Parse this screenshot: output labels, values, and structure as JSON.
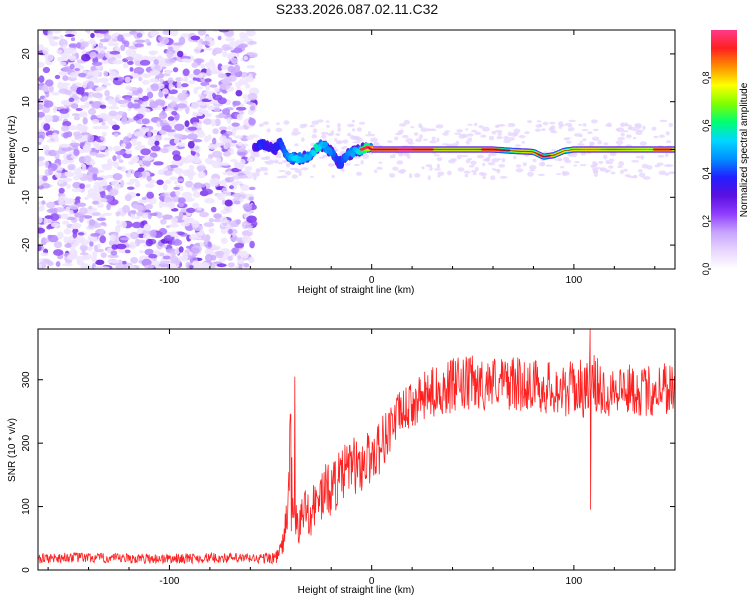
{
  "title": "S233.2026.087.02.11.C32",
  "chart_data": [
    {
      "type": "heatmap",
      "title": "",
      "xlabel": "Height of straight line (km)",
      "ylabel": "Frequency (Hz)",
      "xlim": [
        -165,
        150
      ],
      "ylim": [
        -25,
        25
      ],
      "x_ticks": [
        -100,
        0,
        100
      ],
      "y_ticks": [
        -20,
        -10,
        0,
        10,
        20
      ],
      "colorbar": {
        "label": "Normalized spectral amplitude",
        "range": [
          0,
          1
        ],
        "ticks": [
          "0.0",
          "0.2",
          "0.4",
          "0.6",
          "0.8"
        ],
        "colormap": [
          "#ffffff",
          "#e8d6ff",
          "#c7a3ff",
          "#8f3dff",
          "#5a10e0",
          "#2020ff",
          "#0090ff",
          "#00d8ff",
          "#00ff70",
          "#80ff00",
          "#ffff00",
          "#ff9000",
          "#ff2020",
          "#ff3a8a"
        ]
      },
      "ridge": {
        "description": "energy concentrated near 0 Hz for heights above about -55 km; noise-only scatter below about -58 km",
        "noise_region_x": [
          -165,
          -58
        ],
        "signal_start_x": -58,
        "x": [
          -58,
          -55,
          -52,
          -48,
          -45,
          -42,
          -38,
          -34,
          -30,
          -27,
          -24,
          -20,
          -17,
          -15,
          -12,
          -8,
          -5,
          -2,
          0,
          10,
          20,
          30,
          40,
          50,
          60,
          70,
          80,
          85,
          90,
          95,
          100,
          110,
          120,
          130,
          140,
          148
        ],
        "freq": [
          0.5,
          1.0,
          0.6,
          0.0,
          1.5,
          -1.0,
          -2.0,
          -1.8,
          -1.2,
          0.5,
          1.0,
          -0.5,
          -2.5,
          -3.0,
          -1.0,
          -0.5,
          0.0,
          0.5,
          0.0,
          0.0,
          0.0,
          0.0,
          0.0,
          0.0,
          0.0,
          -0.3,
          -0.5,
          -1.5,
          -1.2,
          -0.3,
          0.0,
          0.0,
          0.0,
          0.0,
          0.0,
          0.0
        ],
        "amplitude": [
          0.3,
          0.4,
          0.35,
          0.35,
          0.4,
          0.45,
          0.55,
          0.5,
          0.5,
          0.6,
          0.5,
          0.45,
          0.4,
          0.4,
          0.45,
          0.5,
          0.6,
          0.7,
          0.9,
          0.9,
          0.88,
          0.85,
          0.85,
          0.85,
          0.88,
          0.85,
          0.85,
          0.9,
          0.85,
          0.8,
          0.82,
          0.8,
          0.85,
          0.8,
          0.75,
          0.85
        ]
      }
    },
    {
      "type": "line",
      "title": "",
      "xlabel": "Height of straight line (km)",
      "ylabel": "SNR (10 * v/v)",
      "xlim": [
        -165,
        150
      ],
      "ylim": [
        0,
        380
      ],
      "x_ticks": [
        -100,
        0,
        100
      ],
      "y_ticks": [
        0,
        100,
        200,
        300
      ],
      "series": [
        {
          "name": "SNR",
          "color": "#ff2020",
          "x": [
            -165,
            -150,
            -125,
            -100,
            -75,
            -55,
            -47,
            -44,
            -42,
            -40,
            -38,
            -35,
            -32,
            -30,
            -27,
            -24,
            -20,
            -17,
            -14,
            -10,
            -7,
            -4,
            0,
            5,
            10,
            15,
            20,
            25,
            30,
            35,
            40,
            45,
            50,
            55,
            60,
            65,
            70,
            75,
            80,
            85,
            90,
            95,
            100,
            105,
            110,
            115,
            120,
            125,
            130,
            135,
            140,
            145,
            150
          ],
          "values": [
            18,
            20,
            18,
            18,
            19,
            18,
            20,
            40,
            80,
            200,
            60,
            80,
            100,
            90,
            110,
            120,
            130,
            140,
            150,
            170,
            160,
            170,
            180,
            200,
            230,
            250,
            260,
            270,
            280,
            285,
            290,
            290,
            295,
            290,
            300,
            295,
            295,
            290,
            295,
            285,
            290,
            280,
            290,
            285,
            295,
            280,
            290,
            285,
            285,
            280,
            285,
            290,
            285
          ],
          "noise_amplitude": [
            8,
            8,
            8,
            8,
            8,
            8,
            10,
            20,
            30,
            90,
            40,
            40,
            40,
            40,
            40,
            45,
            45,
            45,
            45,
            45,
            45,
            45,
            45,
            45,
            40,
            35,
            35,
            40,
            40,
            40,
            45,
            45,
            45,
            40,
            40,
            40,
            45,
            40,
            40,
            40,
            45,
            40,
            45,
            45,
            45,
            45,
            40,
            40,
            40,
            40,
            45,
            45,
            45
          ],
          "spikes": [
            {
              "x": -38,
              "value": 305
            },
            {
              "x": -40,
              "value": 245
            },
            {
              "x": 108,
              "value": 380
            }
          ]
        }
      ]
    }
  ]
}
